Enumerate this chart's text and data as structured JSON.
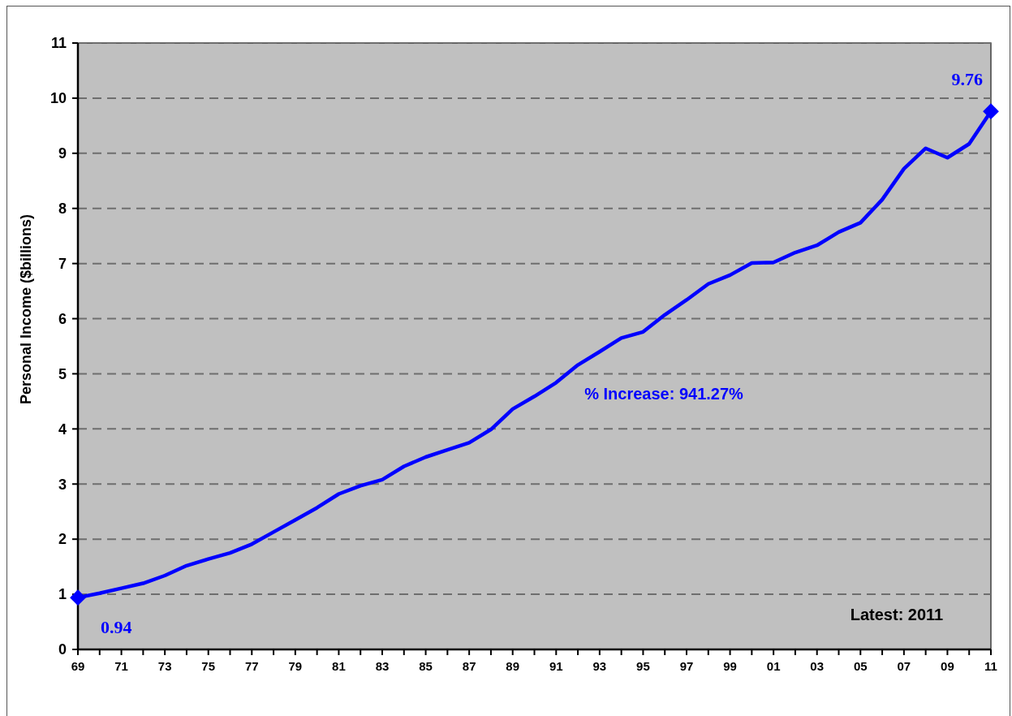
{
  "chart_data": {
    "type": "line",
    "ylabel": "Personal Income ($billions)",
    "annotations": [
      "% Increase: 941.27%",
      "Latest: 2011"
    ],
    "x": [
      1969,
      1970,
      1971,
      1972,
      1973,
      1974,
      1975,
      1976,
      1977,
      1978,
      1979,
      1980,
      1981,
      1982,
      1983,
      1984,
      1985,
      1986,
      1987,
      1988,
      1989,
      1990,
      1991,
      1992,
      1993,
      1994,
      1995,
      1996,
      1997,
      1998,
      1999,
      2000,
      2001,
      2002,
      2003,
      2004,
      2005,
      2006,
      2007,
      2008,
      2009,
      2010,
      2011
    ],
    "series": [
      {
        "color": "#0000ff",
        "marker": "none",
        "values": [
          0.94,
          1.02,
          1.11,
          1.2,
          1.34,
          1.52,
          1.64,
          1.75,
          1.91,
          2.13,
          2.35,
          2.57,
          2.82,
          2.97,
          3.08,
          3.32,
          3.49,
          3.62,
          3.75,
          3.99,
          4.36,
          4.59,
          4.84,
          5.16,
          5.4,
          5.65,
          5.76,
          6.07,
          6.34,
          6.63,
          6.79,
          7.01,
          7.02,
          7.2,
          7.33,
          7.57,
          7.74,
          8.16,
          8.72,
          9.09,
          8.92,
          9.17,
          9.76
        ]
      },
      {
        "type": "scatter",
        "color": "#0000ff",
        "marker": "diamond",
        "x": [
          1969,
          2011
        ],
        "values": [
          0.94,
          9.76
        ],
        "value_labels": [
          "0.94",
          "9.76"
        ]
      }
    ],
    "xlim": [
      1969,
      2011
    ],
    "ylim": [
      0,
      11
    ],
    "yticks": [
      0,
      1,
      2,
      3,
      4,
      5,
      6,
      7,
      8,
      9,
      10,
      11
    ],
    "xticks": [
      {
        "value": 1969,
        "label": "69"
      },
      {
        "value": 1970,
        "label": null
      },
      {
        "value": 1971,
        "label": "71"
      },
      {
        "value": 1972,
        "label": null
      },
      {
        "value": 1973,
        "label": "73"
      },
      {
        "value": 1974,
        "label": null
      },
      {
        "value": 1975,
        "label": "75"
      },
      {
        "value": 1976,
        "label": null
      },
      {
        "value": 1977,
        "label": "77"
      },
      {
        "value": 1978,
        "label": null
      },
      {
        "value": 1979,
        "label": "79"
      },
      {
        "value": 1980,
        "label": null
      },
      {
        "value": 1981,
        "label": "81"
      },
      {
        "value": 1982,
        "label": null
      },
      {
        "value": 1983,
        "label": "83"
      },
      {
        "value": 1984,
        "label": null
      },
      {
        "value": 1985,
        "label": "85"
      },
      {
        "value": 1986,
        "label": null
      },
      {
        "value": 1987,
        "label": "87"
      },
      {
        "value": 1988,
        "label": null
      },
      {
        "value": 1989,
        "label": "89"
      },
      {
        "value": 1990,
        "label": null
      },
      {
        "value": 1991,
        "label": "91"
      },
      {
        "value": 1992,
        "label": null
      },
      {
        "value": 1993,
        "label": "93"
      },
      {
        "value": 1994,
        "label": null
      },
      {
        "value": 1995,
        "label": "95"
      },
      {
        "value": 1996,
        "label": null
      },
      {
        "value": 1997,
        "label": "97"
      },
      {
        "value": 1998,
        "label": null
      },
      {
        "value": 1999,
        "label": "99"
      },
      {
        "value": 2000,
        "label": null
      },
      {
        "value": 2001,
        "label": "01"
      },
      {
        "value": 2002,
        "label": null
      },
      {
        "value": 2003,
        "label": "03"
      },
      {
        "value": 2004,
        "label": null
      },
      {
        "value": 2005,
        "label": "05"
      },
      {
        "value": 2006,
        "label": null
      },
      {
        "value": 2007,
        "label": "07"
      },
      {
        "value": 2008,
        "label": null
      },
      {
        "value": 2009,
        "label": "09"
      },
      {
        "value": 2010,
        "label": null
      },
      {
        "value": 2011,
        "label": "11"
      }
    ],
    "grid": "y"
  }
}
